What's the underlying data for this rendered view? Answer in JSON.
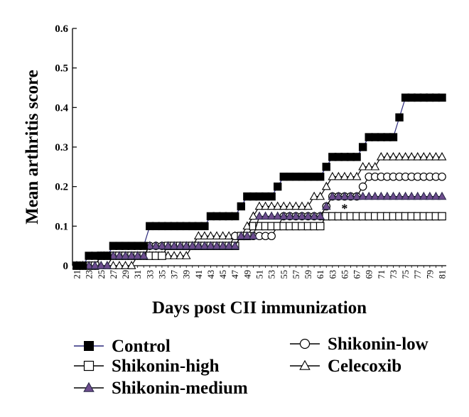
{
  "chart_data": {
    "type": "line",
    "title": "",
    "xlabel": "Days post CII immunization",
    "ylabel": "Mean arthritis score",
    "x": [
      21,
      22,
      23,
      24,
      25,
      26,
      27,
      28,
      29,
      30,
      31,
      32,
      33,
      34,
      35,
      36,
      37,
      38,
      39,
      40,
      41,
      42,
      43,
      44,
      45,
      46,
      47,
      48,
      49,
      50,
      51,
      52,
      53,
      54,
      55,
      56,
      57,
      58,
      59,
      60,
      61,
      62,
      63,
      64,
      65,
      66,
      67,
      68,
      69,
      70,
      71,
      72,
      73,
      74,
      75,
      76,
      77,
      78,
      79,
      80,
      81
    ],
    "xticks": [
      "21",
      "23",
      "25",
      "27",
      "29",
      "31",
      "33",
      "35",
      "37",
      "39",
      "41",
      "43",
      "45",
      "47",
      "49",
      "51",
      "53",
      "55",
      "57",
      "59",
      "61",
      "63",
      "65",
      "67",
      "69",
      "71",
      "73",
      "75",
      "77",
      "79",
      "81"
    ],
    "ylim": [
      0,
      0.6
    ],
    "yticks": [
      "0",
      "0.1",
      "0.2",
      "0.3",
      "0.4",
      "0.5",
      "0.6"
    ],
    "grid": false,
    "legend_position": "bottom",
    "annotation": {
      "text": "*",
      "x": 65,
      "y": 0.145
    },
    "series": [
      {
        "name": "Control",
        "marker": "filled-square",
        "line_color": "#2b2a7c",
        "marker_color": "#000000",
        "values": [
          0,
          0,
          0.025,
          0.025,
          0.025,
          0.025,
          0.05,
          0.05,
          0.05,
          0.05,
          0.05,
          0.05,
          0.1,
          0.1,
          0.1,
          0.1,
          0.1,
          0.1,
          0.1,
          0.1,
          0.1,
          0.1,
          0.125,
          0.125,
          0.125,
          0.125,
          0.125,
          0.15,
          0.175,
          0.175,
          0.175,
          0.175,
          0.175,
          0.2,
          0.225,
          0.225,
          0.225,
          0.225,
          0.225,
          0.225,
          0.225,
          0.25,
          0.275,
          0.275,
          0.275,
          0.275,
          0.275,
          0.3,
          0.325,
          0.325,
          0.325,
          0.325,
          0.325,
          0.375,
          0.425,
          0.425,
          0.425,
          0.425,
          0.425,
          0.425,
          0.425
        ]
      },
      {
        "name": "Shikonin-high",
        "marker": "open-square",
        "line_color": "#000000",
        "marker_color": "#000000",
        "values": [
          0,
          0,
          0,
          0,
          0.025,
          0.025,
          0.025,
          0.025,
          0.025,
          0.025,
          0.025,
          0.025,
          0.025,
          0.025,
          0.025,
          0.05,
          0.05,
          0.05,
          0.05,
          0.05,
          0.05,
          0.05,
          0.05,
          0.05,
          0.05,
          0.05,
          0.05,
          0.075,
          0.075,
          0.1,
          0.1,
          0.1,
          0.1,
          0.1,
          0.1,
          0.1,
          0.1,
          0.1,
          0.1,
          0.1,
          0.1,
          0.125,
          0.125,
          0.125,
          0.125,
          0.125,
          0.125,
          0.125,
          0.125,
          0.125,
          0.125,
          0.125,
          0.125,
          0.125,
          0.125,
          0.125,
          0.125,
          0.125,
          0.125,
          0.125,
          0.125
        ]
      },
      {
        "name": "Shikonin-medium",
        "marker": "filled-triangle",
        "line_color": "#000000",
        "marker_color": "#6e4d8f",
        "values": [
          0,
          0,
          0,
          0,
          0,
          0,
          0.025,
          0.025,
          0.025,
          0.025,
          0.025,
          0.025,
          0.05,
          0.05,
          0.05,
          0.05,
          0.05,
          0.05,
          0.05,
          0.05,
          0.05,
          0.05,
          0.05,
          0.05,
          0.05,
          0.05,
          0.05,
          0.075,
          0.075,
          0.075,
          0.125,
          0.125,
          0.125,
          0.125,
          0.125,
          0.125,
          0.125,
          0.125,
          0.125,
          0.125,
          0.125,
          0.15,
          0.175,
          0.175,
          0.175,
          0.175,
          0.175,
          0.175,
          0.175,
          0.175,
          0.175,
          0.175,
          0.175,
          0.175,
          0.175,
          0.175,
          0.175,
          0.175,
          0.175,
          0.175,
          0.175
        ]
      },
      {
        "name": "Shikonin-low",
        "marker": "open-circle",
        "line_color": "#000000",
        "marker_color": "#000000",
        "values": [
          0,
          0,
          0,
          0,
          0.025,
          0.025,
          0.025,
          0.025,
          0.025,
          0.025,
          0.025,
          0.025,
          0.05,
          0.05,
          0.05,
          0.05,
          0.05,
          0.05,
          0.05,
          0.05,
          0.05,
          0.05,
          0.05,
          0.05,
          0.05,
          0.05,
          0.075,
          0.075,
          0.075,
          0.075,
          0.075,
          0.075,
          0.075,
          0.1,
          0.125,
          0.125,
          0.125,
          0.125,
          0.125,
          0.125,
          0.125,
          0.15,
          0.175,
          0.175,
          0.175,
          0.175,
          0.175,
          0.2,
          0.225,
          0.225,
          0.225,
          0.225,
          0.225,
          0.225,
          0.225,
          0.225,
          0.225,
          0.225,
          0.225,
          0.225,
          0.225
        ]
      },
      {
        "name": "Celecoxib",
        "marker": "open-triangle",
        "line_color": "#000000",
        "marker_color": "#000000",
        "values": [
          0,
          0,
          0,
          0,
          0,
          0,
          0,
          0,
          0,
          0,
          0.025,
          0.025,
          0.025,
          0.025,
          0.025,
          0.025,
          0.025,
          0.025,
          0.025,
          0.05,
          0.075,
          0.075,
          0.075,
          0.075,
          0.075,
          0.075,
          0.075,
          0.075,
          0.1,
          0.125,
          0.15,
          0.15,
          0.15,
          0.15,
          0.15,
          0.15,
          0.15,
          0.15,
          0.15,
          0.175,
          0.175,
          0.2,
          0.225,
          0.225,
          0.225,
          0.225,
          0.225,
          0.25,
          0.25,
          0.25,
          0.275,
          0.275,
          0.275,
          0.275,
          0.275,
          0.275,
          0.275,
          0.275,
          0.275,
          0.275,
          0.275
        ]
      }
    ]
  }
}
